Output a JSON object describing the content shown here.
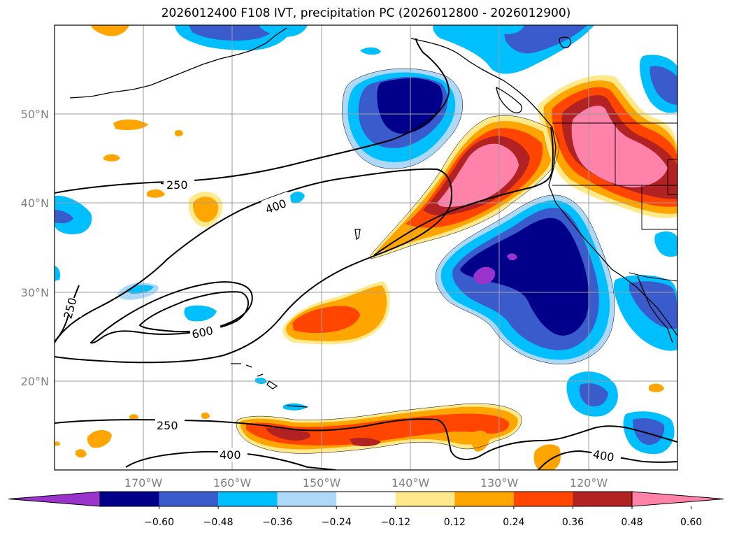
{
  "title": "2026012400 F108 IVT, precipitation PC (2026012800 - 2026012900)",
  "map": {
    "lon_range": [
      -180,
      -110
    ],
    "lat_range": [
      10,
      60
    ],
    "lat_ticks": [
      "50°N",
      "40°N",
      "30°N",
      "20°N"
    ],
    "lon_ticks": [
      "170°W",
      "160°W",
      "150°W",
      "140°W",
      "130°W",
      "120°W"
    ],
    "contour_labels": [
      "250",
      "400",
      "600",
      "250",
      "250",
      "400",
      "400"
    ],
    "tick_color": "#808080"
  },
  "colorbar": {
    "labels": [
      "−0.60",
      "−0.48",
      "−0.36",
      "−0.24",
      "−0.12",
      "0.12",
      "0.24",
      "0.36",
      "0.48",
      "0.60"
    ],
    "colors": [
      "#9933cc",
      "#00008b",
      "#3a5bcc",
      "#00bfff",
      "#add8f8",
      "#ffffff",
      "#ffe98a",
      "#ffa500",
      "#ff4500",
      "#b22222",
      "#ff82ab"
    ]
  }
}
